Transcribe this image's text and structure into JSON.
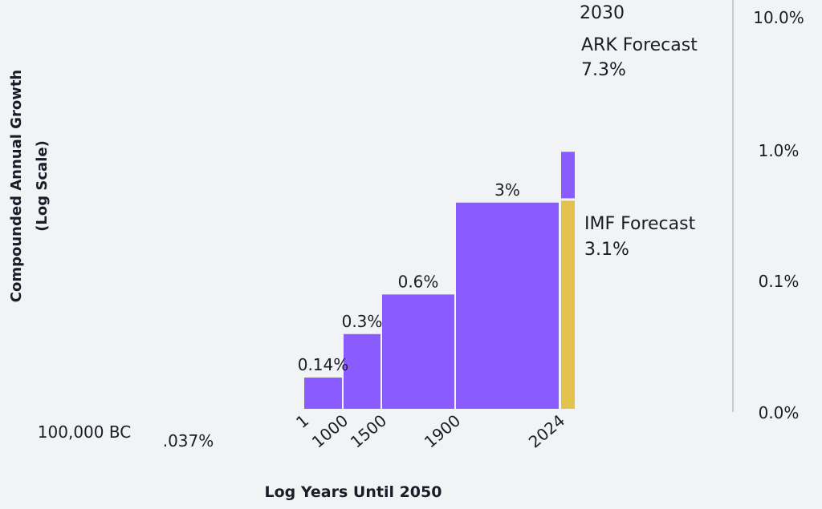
{
  "chart_data": {
    "type": "bar",
    "title": "",
    "xlabel": "Log Years Until 2050",
    "ylabel_line1": "Compounded Annual Growth",
    "ylabel_line2": "(Log Scale)",
    "x_ticks": [
      "100,000 BC",
      "1",
      "1000",
      "1500",
      "1900",
      "2024"
    ],
    "y_ticks": [
      "10.0%",
      "1.0%",
      "0.1%",
      "0.0%"
    ],
    "bars": [
      {
        "start": "100,000 BC",
        "end": "1",
        "value": 0.037,
        "label": ".037%"
      },
      {
        "start": "1",
        "end": "1000",
        "value": 0.14,
        "label": "0.14%"
      },
      {
        "start": "1000",
        "end": "1500",
        "value": 0.3,
        "label": "0.3%"
      },
      {
        "start": "1500",
        "end": "1900",
        "value": 0.6,
        "label": "0.6%"
      },
      {
        "start": "1900",
        "end": "2024",
        "value": 3,
        "label": "3%"
      }
    ],
    "forecasts": [
      {
        "name": "ARK Forecast",
        "year": "2030",
        "value": 7.3,
        "value_label": "7.3%",
        "color": "#8a5cff"
      },
      {
        "name": "IMF Forecast",
        "value": 3.1,
        "value_label": "3.1%",
        "color": "#e3c24d"
      }
    ],
    "colors": {
      "bar": "#8a5cff",
      "imf": "#e3c24d",
      "background": "#f2f3f5",
      "axis_line": "#c9cacd"
    },
    "grid": false
  }
}
